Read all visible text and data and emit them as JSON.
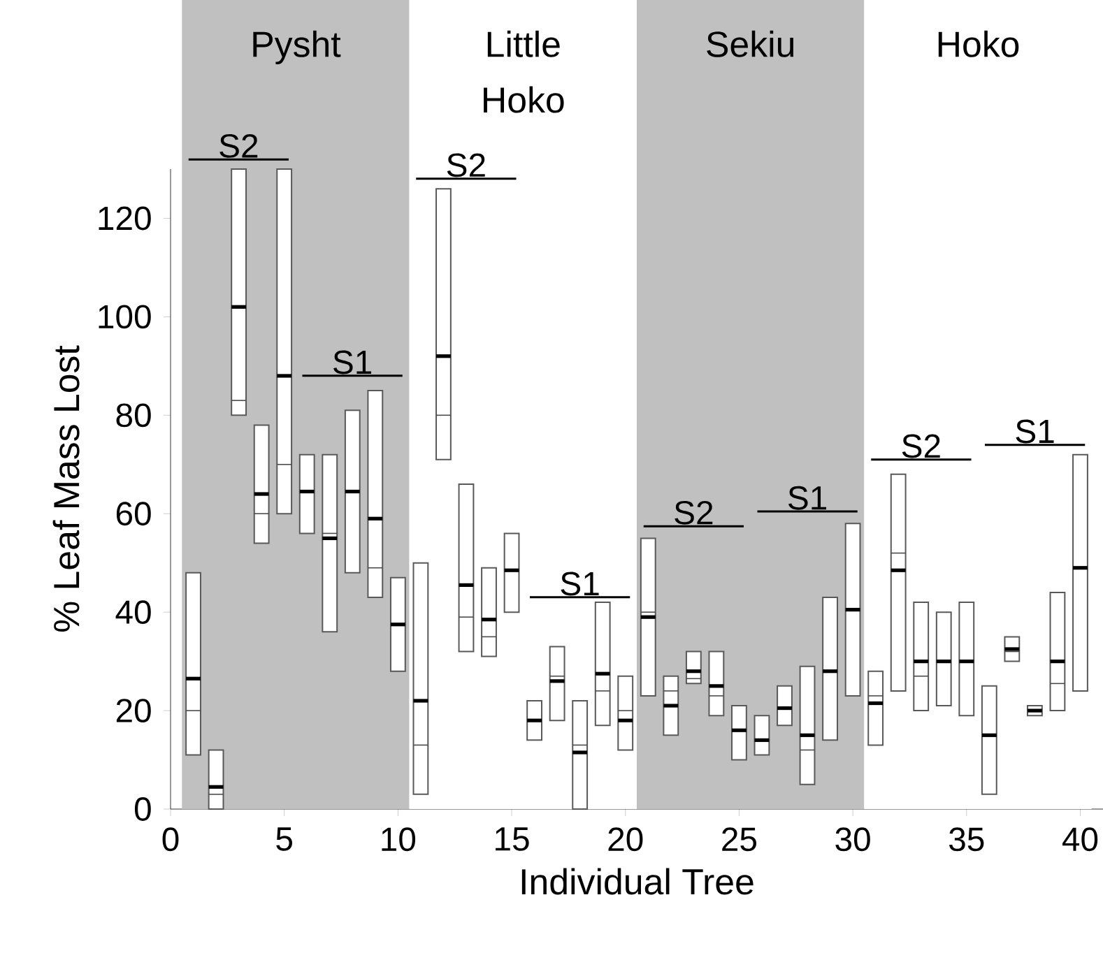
{
  "chart_data": {
    "type": "box",
    "xlabel": "Individual Tree",
    "ylabel": "% Leaf Mass Lost",
    "x": [
      1,
      2,
      3,
      4,
      5,
      6,
      7,
      8,
      9,
      10,
      11,
      12,
      13,
      14,
      15,
      16,
      17,
      18,
      19,
      20,
      21,
      22,
      23,
      24,
      25,
      26,
      27,
      28,
      29,
      30,
      31,
      32,
      33,
      34,
      35,
      36,
      37,
      38,
      39,
      40
    ],
    "boxes": [
      {
        "low": 11,
        "q1": 11,
        "median": 20,
        "q3": 48,
        "high": 48,
        "mean": 26.5
      },
      {
        "low": 0,
        "q1": 0,
        "median": 3,
        "q3": 12,
        "high": 12,
        "mean": 4.5
      },
      {
        "low": 80,
        "q1": 80,
        "median": 83,
        "q3": 130,
        "high": 130,
        "mean": 102
      },
      {
        "low": 54,
        "q1": 54,
        "median": 60,
        "q3": 78,
        "high": 78,
        "mean": 64
      },
      {
        "low": 60,
        "q1": 60,
        "median": 70,
        "q3": 130,
        "high": 130,
        "mean": 88
      },
      {
        "low": 56,
        "q1": 56,
        "median": 64.5,
        "q3": 72,
        "high": 72,
        "mean": 64.5
      },
      {
        "low": 36,
        "q1": 36,
        "median": 56,
        "q3": 72,
        "high": 72,
        "mean": 55
      },
      {
        "low": 48,
        "q1": 48,
        "median": 64.5,
        "q3": 81,
        "high": 81,
        "mean": 64.5
      },
      {
        "low": 43,
        "q1": 43,
        "median": 49,
        "q3": 85,
        "high": 85,
        "mean": 59
      },
      {
        "low": 28,
        "q1": 28,
        "median": 37.5,
        "q3": 47,
        "high": 47,
        "mean": 37.5
      },
      {
        "low": 3,
        "q1": 3,
        "median": 13,
        "q3": 50,
        "high": 50,
        "mean": 22
      },
      {
        "low": 71,
        "q1": 71,
        "median": 80,
        "q3": 126,
        "high": 126,
        "mean": 92
      },
      {
        "low": 32,
        "q1": 32,
        "median": 39,
        "q3": 66,
        "high": 66,
        "mean": 45.5
      },
      {
        "low": 31,
        "q1": 31,
        "median": 35,
        "q3": 49,
        "high": 49,
        "mean": 38.5
      },
      {
        "low": 40,
        "q1": 40,
        "median": 48.5,
        "q3": 56,
        "high": 56,
        "mean": 48.5
      },
      {
        "low": 14,
        "q1": 14,
        "median": 18,
        "q3": 22,
        "high": 22,
        "mean": 18
      },
      {
        "low": 18,
        "q1": 18,
        "median": 27,
        "q3": 33,
        "high": 33,
        "mean": 26
      },
      {
        "low": 0,
        "q1": 0,
        "median": 13,
        "q3": 22,
        "high": 22,
        "mean": 11.5
      },
      {
        "low": 17,
        "q1": 17,
        "median": 24,
        "q3": 42,
        "high": 42,
        "mean": 27.5
      },
      {
        "low": 12,
        "q1": 12,
        "median": 20,
        "q3": 27,
        "high": 27,
        "mean": 18
      },
      {
        "low": 23,
        "q1": 23,
        "median": 40,
        "q3": 55,
        "high": 55,
        "mean": 39
      },
      {
        "low": 15,
        "q1": 15,
        "median": 24,
        "q3": 27,
        "high": 27,
        "mean": 21
      },
      {
        "low": 25.5,
        "q1": 25.5,
        "median": 26.5,
        "q3": 32,
        "high": 32,
        "mean": 28
      },
      {
        "low": 19,
        "q1": 19,
        "median": 23,
        "q3": 32,
        "high": 32,
        "mean": 25
      },
      {
        "low": 10,
        "q1": 10,
        "median": 16,
        "q3": 21,
        "high": 21,
        "mean": 16
      },
      {
        "low": 11,
        "q1": 11,
        "median": 14,
        "q3": 19,
        "high": 19,
        "mean": 14
      },
      {
        "low": 17,
        "q1": 17,
        "median": 20.5,
        "q3": 25,
        "high": 25,
        "mean": 20.5
      },
      {
        "low": 5,
        "q1": 5,
        "median": 12,
        "q3": 29,
        "high": 29,
        "mean": 15
      },
      {
        "low": 14,
        "q1": 14,
        "median": 28,
        "q3": 43,
        "high": 43,
        "mean": 28
      },
      {
        "low": 23,
        "q1": 23,
        "median": 40.5,
        "q3": 58,
        "high": 58,
        "mean": 40.5
      },
      {
        "low": 13,
        "q1": 13,
        "median": 23,
        "q3": 28,
        "high": 28,
        "mean": 21.5
      },
      {
        "low": 24,
        "q1": 24,
        "median": 52,
        "q3": 68,
        "high": 68,
        "mean": 48.5
      },
      {
        "low": 20,
        "q1": 20,
        "median": 27,
        "q3": 42,
        "high": 42,
        "mean": 30
      },
      {
        "low": 21,
        "q1": 21,
        "median": 30,
        "q3": 40,
        "high": 40,
        "mean": 30
      },
      {
        "low": 19,
        "q1": 19,
        "median": 30,
        "q3": 42,
        "high": 42,
        "mean": 30
      },
      {
        "low": 3,
        "q1": 3,
        "median": 15,
        "q3": 25,
        "high": 25,
        "mean": 15
      },
      {
        "low": 30,
        "q1": 30,
        "median": 32,
        "q3": 35,
        "high": 35,
        "mean": 32.5
      },
      {
        "low": 19,
        "q1": 19,
        "median": 20,
        "q3": 21,
        "high": 21,
        "mean": 20
      },
      {
        "low": 20,
        "q1": 20,
        "median": 25.5,
        "q3": 44,
        "high": 44,
        "mean": 30
      },
      {
        "low": 24,
        "q1": 24,
        "median": 49,
        "q3": 72,
        "high": 72,
        "mean": 49
      }
    ],
    "xlim": [
      0,
      41
    ],
    "ylim": [
      0,
      130
    ],
    "xticks": [
      0,
      5,
      10,
      15,
      20,
      25,
      30,
      35,
      40
    ],
    "yticks": [
      0,
      20,
      40,
      60,
      80,
      100,
      120
    ],
    "bands": [
      {
        "axis": "x",
        "from": 0.5,
        "to": 10.5,
        "label": "Pysht",
        "color": "#c0c0c0"
      },
      {
        "axis": "x",
        "from": 10.5,
        "to": 20.5,
        "label": "Little Hoko",
        "color": "#ffffff"
      },
      {
        "axis": "x",
        "from": 20.5,
        "to": 30.5,
        "label": "Sekiu",
        "color": "#c0c0c0"
      },
      {
        "axis": "x",
        "from": 30.5,
        "to": 40.5,
        "label": "Hoko",
        "color": "#ffffff"
      }
    ],
    "annotations": [
      "S2",
      "S1",
      "S2",
      "S1",
      "S2",
      "S1",
      "S2",
      "S1"
    ]
  }
}
